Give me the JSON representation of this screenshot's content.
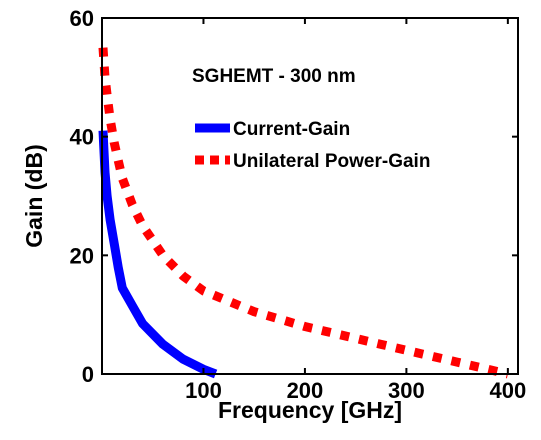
{
  "chart_data": {
    "type": "line",
    "title": "SGHEMT - 300 nm",
    "xlabel": "Frequency [GHz]",
    "ylabel": "Gain (dB)",
    "xlim": [
      0,
      410
    ],
    "ylim": [
      0,
      60
    ],
    "x_ticks": [
      "100",
      "200",
      "300",
      "400"
    ],
    "y_ticks": [
      "0",
      "20",
      "40",
      "60"
    ],
    "grid": false,
    "legend_placement": "upper-right",
    "series": [
      {
        "name": "Current-Gain",
        "color": "#0000ff",
        "style": "solid",
        "x": [
          1,
          3,
          5,
          8,
          12,
          16,
          20,
          30,
          40,
          60,
          80,
          100,
          112
        ],
        "y": [
          41,
          34,
          30,
          26,
          22,
          18,
          14.5,
          11.5,
          8.5,
          5,
          2.5,
          0.8,
          0
        ]
      },
      {
        "name": "Unilateral Power-Gain",
        "color": "#ff0000",
        "style": "dashed",
        "x": [
          1,
          3,
          5,
          8,
          12,
          16,
          20,
          30,
          40,
          60,
          80,
          100,
          150,
          200,
          250,
          300,
          350,
          400
        ],
        "y": [
          55,
          50,
          47,
          43,
          39,
          36,
          33,
          28.5,
          25,
          20,
          16.5,
          14,
          10.5,
          8,
          6,
          4,
          2,
          0
        ]
      }
    ]
  }
}
